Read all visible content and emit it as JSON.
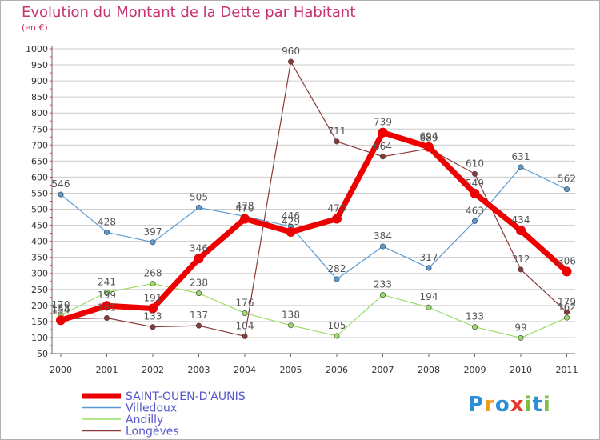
{
  "title": "Evolution du Montant de la Dette par Habitant",
  "subtitle": "(en €)",
  "colors": {
    "title": "#c7346f",
    "legend_text": "#5555cc",
    "grid": "#cccccc"
  },
  "logo": {
    "text": "Proxiti",
    "letters": [
      "P",
      "r",
      "o",
      "x",
      "i",
      "t",
      "i"
    ],
    "colors": [
      "#2a8fd6",
      "#f39b1f",
      "#2a8fd6",
      "#e23b2e",
      "#7fbf3f",
      "#2a8fd6",
      "#7fbf3f"
    ]
  },
  "chart_data": {
    "type": "line",
    "title": "Evolution du Montant de la Dette par Habitant",
    "ylabel": "(en €)",
    "xlabel": "",
    "x": [
      "2000",
      "2001",
      "2002",
      "2003",
      "2004",
      "2005",
      "2006",
      "2007",
      "2008",
      "2009",
      "2010",
      "2011"
    ],
    "ylim": [
      50,
      1000
    ],
    "yticks": [
      50,
      100,
      150,
      200,
      250,
      300,
      350,
      400,
      450,
      500,
      550,
      600,
      650,
      700,
      750,
      800,
      850,
      900,
      950,
      1000
    ],
    "grid": "horizontal",
    "legend_position": "bottom-left",
    "series": [
      {
        "name": "Villedoux",
        "color": "#5b9bd5",
        "values": [
          546,
          428,
          397,
          505,
          478,
          446,
          282,
          384,
          317,
          463,
          631,
          562
        ]
      },
      {
        "name": "Andilly",
        "color": "#99dd66",
        "values": [
          170,
          241,
          268,
          238,
          176,
          138,
          105,
          233,
          194,
          133,
          99,
          162
        ]
      },
      {
        "name": "Longèves",
        "color": "#8b3a3a",
        "values": [
          158,
          161,
          133,
          137,
          104,
          960,
          711,
          664,
          689,
          610,
          312,
          179
        ]
      },
      {
        "name": "SAINT-OUEN-D'AUNIS",
        "color": "#ee0000",
        "values": [
          154,
          199,
          191,
          346,
          470,
          429,
          470,
          739,
          694,
          549,
          434,
          306
        ]
      }
    ],
    "legend_order": [
      "SAINT-OUEN-D'AUNIS",
      "Villedoux",
      "Andilly",
      "Longèves"
    ]
  }
}
